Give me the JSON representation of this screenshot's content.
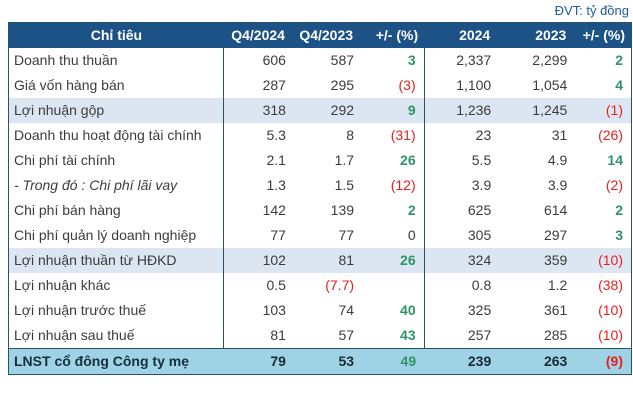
{
  "meta": {
    "unit_label": "ĐVT: tỷ đồng"
  },
  "colors": {
    "navy": "#1D5287",
    "line": "#27546B",
    "hl": "#DCE6F2",
    "total": "#9ED2E4",
    "green": "#2E9467",
    "red": "#E8201E",
    "text": "#3C3C3C",
    "unit": "#1D5DA0"
  },
  "table": {
    "headers": [
      "Chỉ tiêu",
      "Q4/2024",
      "Q4/2023",
      "+/- (%)",
      "2024",
      "2023",
      "+/- (%)"
    ],
    "rows": [
      {
        "label": "Doanh thu thuần",
        "style": "",
        "cells": [
          {
            "t": "606"
          },
          {
            "t": "587"
          },
          {
            "t": "3",
            "c": "green"
          },
          {
            "t": "2,337"
          },
          {
            "t": "2,299"
          },
          {
            "t": "2",
            "c": "green"
          }
        ]
      },
      {
        "label": "Giá vốn hàng bán",
        "style": "",
        "cells": [
          {
            "t": "287"
          },
          {
            "t": "295"
          },
          {
            "t": "(3)",
            "c": "red"
          },
          {
            "t": "1,100"
          },
          {
            "t": "1,054"
          },
          {
            "t": "4",
            "c": "green"
          }
        ]
      },
      {
        "label": "Lợi nhuận gộp",
        "style": "hl",
        "cells": [
          {
            "t": "318"
          },
          {
            "t": "292"
          },
          {
            "t": "9",
            "c": "green"
          },
          {
            "t": "1,236"
          },
          {
            "t": "1,245"
          },
          {
            "t": "(1)",
            "c": "red"
          }
        ]
      },
      {
        "label": "Doanh thu hoạt động tài chính",
        "style": "",
        "cells": [
          {
            "t": "5.3"
          },
          {
            "t": "8"
          },
          {
            "t": "(31)",
            "c": "red"
          },
          {
            "t": "23"
          },
          {
            "t": "31"
          },
          {
            "t": "(26)",
            "c": "red"
          }
        ]
      },
      {
        "label": "Chi phí tài chính",
        "style": "",
        "cells": [
          {
            "t": "2.1"
          },
          {
            "t": "1.7"
          },
          {
            "t": "26",
            "c": "green"
          },
          {
            "t": "5.5"
          },
          {
            "t": "4.9"
          },
          {
            "t": "14",
            "c": "green"
          }
        ]
      },
      {
        "label": "- Trong đó : Chi phí lãi vay",
        "style": "it",
        "cells": [
          {
            "t": "1.3"
          },
          {
            "t": "1.5"
          },
          {
            "t": "(12)",
            "c": "red"
          },
          {
            "t": "3.9"
          },
          {
            "t": "3.9"
          },
          {
            "t": "(2)",
            "c": "red"
          }
        ]
      },
      {
        "label": "Chi phí bán hàng",
        "style": "",
        "cells": [
          {
            "t": "142"
          },
          {
            "t": "139"
          },
          {
            "t": "2",
            "c": "green"
          },
          {
            "t": "625"
          },
          {
            "t": "614"
          },
          {
            "t": "2",
            "c": "green"
          }
        ]
      },
      {
        "label": "Chi phí quản lý doanh nghiệp",
        "style": "",
        "cells": [
          {
            "t": "77"
          },
          {
            "t": "77"
          },
          {
            "t": "0"
          },
          {
            "t": "305"
          },
          {
            "t": "297"
          },
          {
            "t": "3",
            "c": "green"
          }
        ]
      },
      {
        "label": "Lợi nhuận thuần từ HĐKD",
        "style": "hl",
        "cells": [
          {
            "t": "102"
          },
          {
            "t": "81"
          },
          {
            "t": "26",
            "c": "green"
          },
          {
            "t": "324"
          },
          {
            "t": "359"
          },
          {
            "t": "(10)",
            "c": "red"
          }
        ]
      },
      {
        "label": "Lợi nhuận khác",
        "style": "",
        "cells": [
          {
            "t": "0.5"
          },
          {
            "t": "(7.7)",
            "c": "red"
          },
          {
            "t": ""
          },
          {
            "t": "0.8"
          },
          {
            "t": "1.2"
          },
          {
            "t": "(38)",
            "c": "red"
          }
        ]
      },
      {
        "label": "Lợi nhuận trước thuế",
        "style": "",
        "cells": [
          {
            "t": "103"
          },
          {
            "t": "74"
          },
          {
            "t": "40",
            "c": "green"
          },
          {
            "t": "325"
          },
          {
            "t": "361"
          },
          {
            "t": "(10)",
            "c": "red"
          }
        ]
      },
      {
        "label": "Lợi nhuận sau thuế",
        "style": "",
        "cells": [
          {
            "t": "81"
          },
          {
            "t": "57"
          },
          {
            "t": "43",
            "c": "green"
          },
          {
            "t": "257"
          },
          {
            "t": "285"
          },
          {
            "t": "(10)",
            "c": "red"
          }
        ]
      },
      {
        "label": "LNST cổ đông Công ty mẹ",
        "style": "total",
        "cells": [
          {
            "t": "79"
          },
          {
            "t": "53"
          },
          {
            "t": "49",
            "c": "green"
          },
          {
            "t": "239"
          },
          {
            "t": "263"
          },
          {
            "t": "(9)",
            "c": "red"
          }
        ]
      }
    ]
  }
}
